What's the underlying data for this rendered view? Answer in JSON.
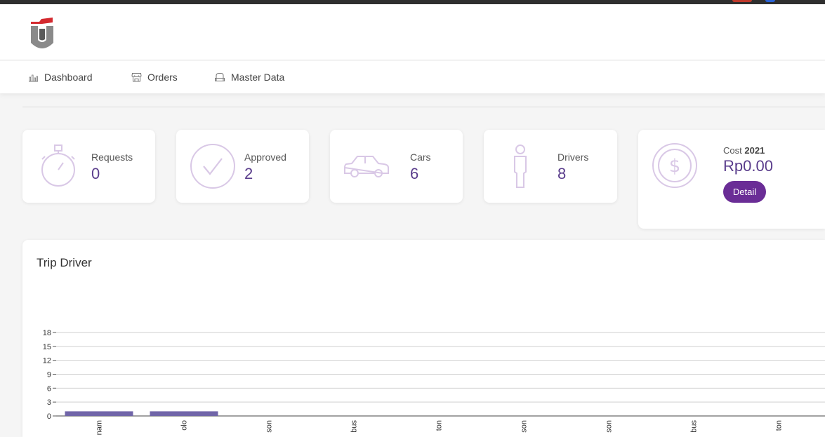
{
  "nav": {
    "items": [
      {
        "label": "Dashboard",
        "icon": "bar-chart-icon"
      },
      {
        "label": "Orders",
        "icon": "store-icon"
      },
      {
        "label": "Master Data",
        "icon": "car-seat-icon"
      }
    ]
  },
  "stats": {
    "requests": {
      "label": "Requests",
      "value": "0"
    },
    "approved": {
      "label": "Approved",
      "value": "2"
    },
    "cars": {
      "label": "Cars",
      "value": "6"
    },
    "drivers": {
      "label": "Drivers",
      "value": "8"
    },
    "cost": {
      "label": "Cost",
      "year": "2021",
      "value": "Rp0.00",
      "button": "Detail"
    }
  },
  "colors": {
    "accent": "#6a2d96",
    "icon": "#d9c8e6",
    "bar": "#7065a8"
  },
  "chart_title": "Trip Driver",
  "chart_data": {
    "type": "bar",
    "title": "Trip Driver",
    "categories": [
      "nam",
      "olo",
      "son",
      "bus",
      "ton",
      "son",
      "son",
      "bus",
      "ton"
    ],
    "values": [
      1,
      1,
      0,
      0,
      0,
      0,
      0,
      0,
      0
    ],
    "yticks": [
      0,
      3,
      6,
      9,
      12,
      15,
      18
    ],
    "ylim": [
      0,
      18
    ],
    "xlabel": "",
    "ylabel": ""
  }
}
